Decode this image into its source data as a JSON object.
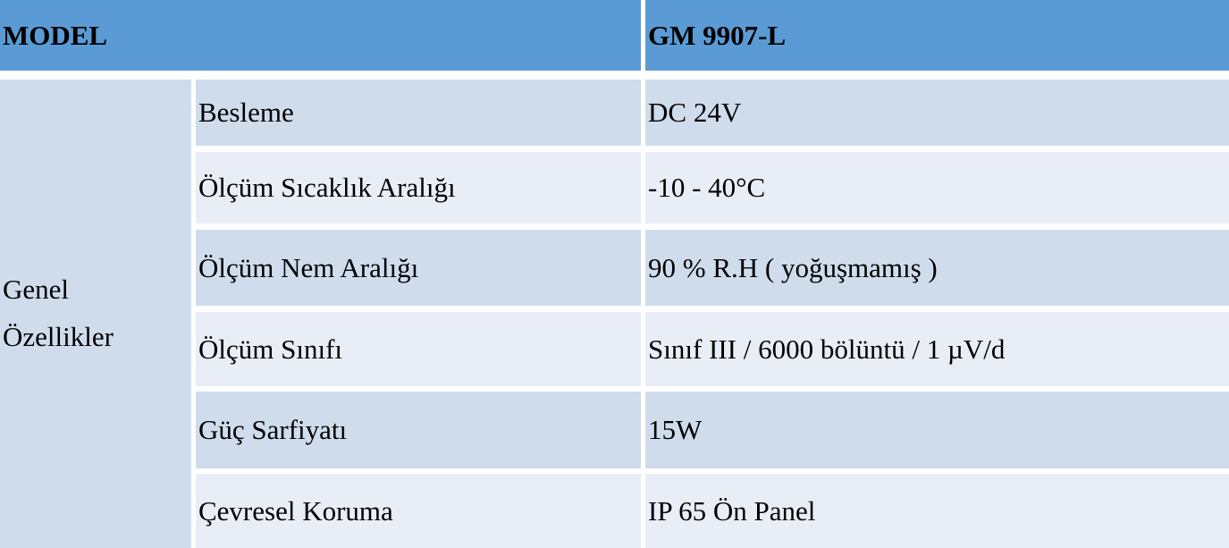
{
  "table": {
    "header": {
      "model_label": "MODEL",
      "model_value": "GM 9907-L"
    },
    "category": {
      "line1": "Genel",
      "line2": "Özellikler"
    },
    "rows": [
      {
        "label": "Besleme",
        "value": "DC 24V"
      },
      {
        "label": "Ölçüm Sıcaklık Aralığı",
        "value": "-10 - 40°C"
      },
      {
        "label": "Ölçüm Nem Aralığı",
        "value": "90 % R.H ( yoğuşmamış )"
      },
      {
        "label": "Ölçüm Sınıfı",
        "value": "Sınıf III / 6000 bölüntü / 1 µV/d"
      },
      {
        "label": "Güç Sarfiyatı",
        "value": "15W"
      },
      {
        "label": "Çevresel Koruma",
        "value": "IP 65 Ön Panel"
      }
    ],
    "colors": {
      "header_bg": "#5B9BD5",
      "band_dark": "#CFDCEC",
      "band_light": "#E9EDF6",
      "category_bg": "#CFDCEC",
      "gutter": "#FFFFFF",
      "text": "#000000"
    }
  }
}
